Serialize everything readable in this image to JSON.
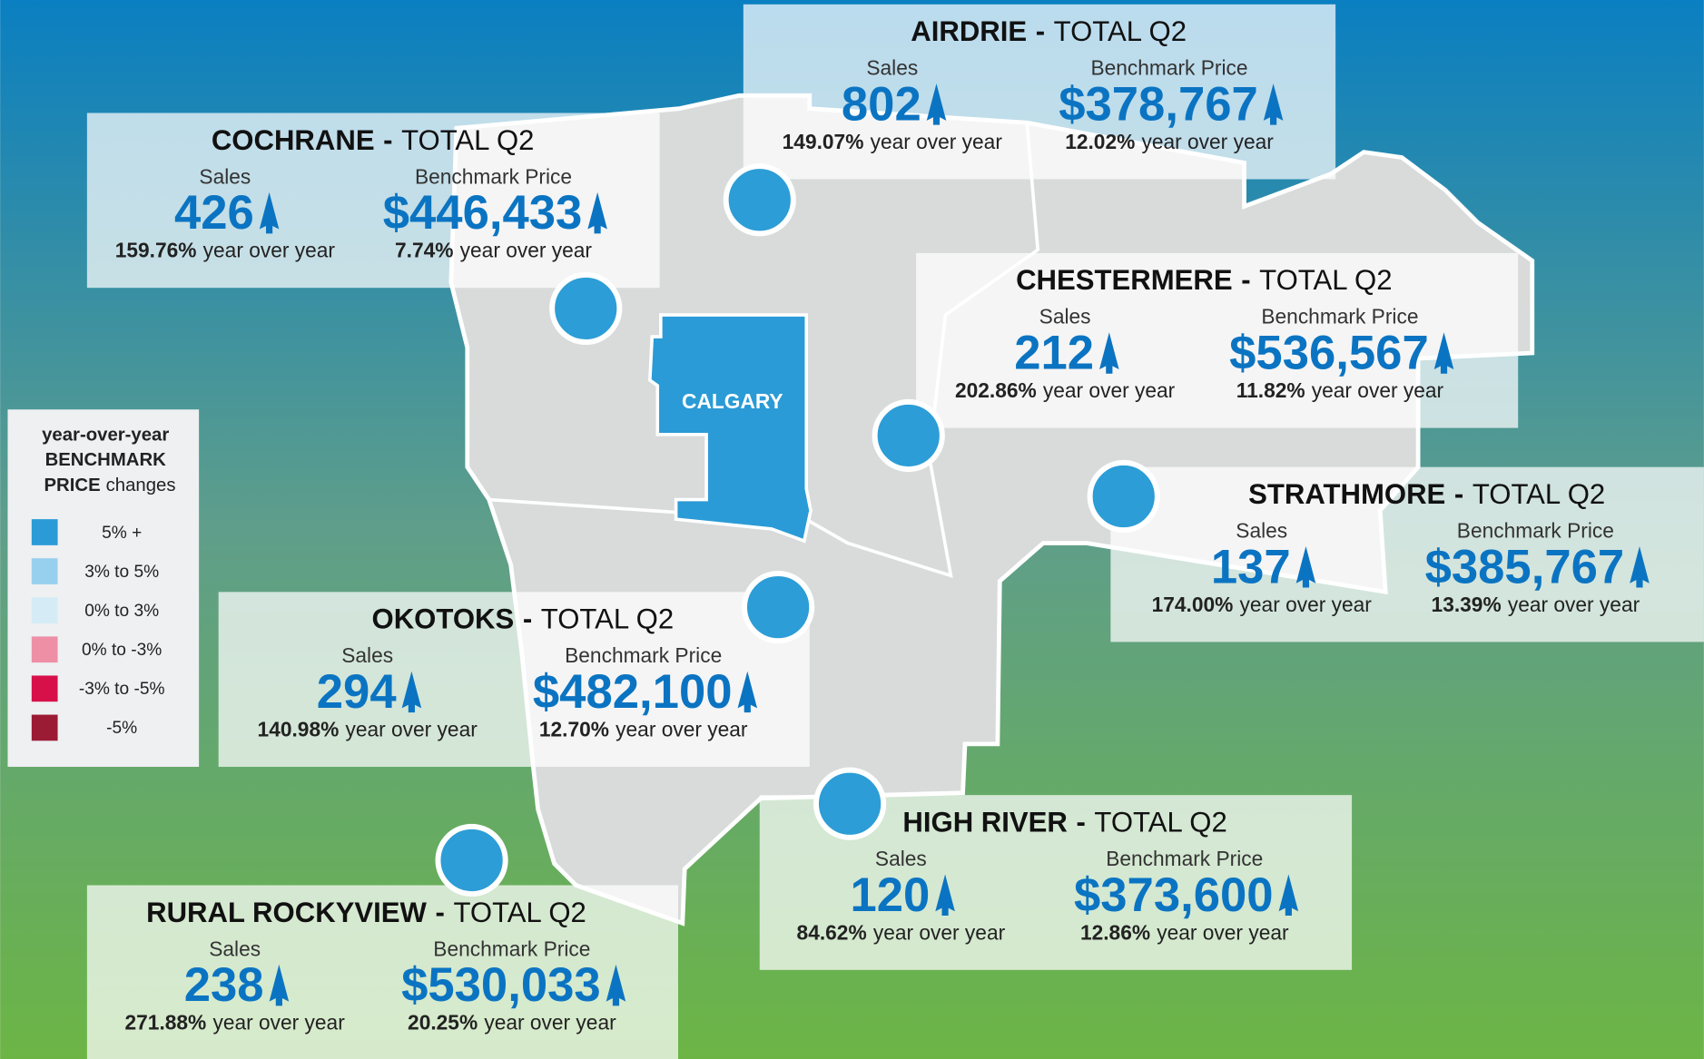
{
  "calgary_label": "CALGARY",
  "shared": {
    "dash": "-",
    "period": "TOTAL Q2",
    "sales_label": "Sales",
    "price_label": "Benchmark Price",
    "yoy": "year over year"
  },
  "legend": {
    "title_lines": [
      "year-over-year",
      "BENCHMARK"
    ],
    "title_bold": "PRICE",
    "title_rest": "changes",
    "items": [
      {
        "label": "5% +",
        "color": "#2a9bd6"
      },
      {
        "label": "3% to 5%",
        "color": "#97d0ee"
      },
      {
        "label": "0% to 3%",
        "color": "#d5ecf6"
      },
      {
        "label": "0% to -3%",
        "color": "#ee8fa6"
      },
      {
        "label": "-3% to -5%",
        "color": "#d7104a"
      },
      {
        "label": "-5%",
        "color": "#9b1b35"
      }
    ]
  },
  "regions": [
    {
      "name": "AIRDRIE",
      "sales": "802",
      "sales_yoy": "149.07%",
      "price": "$378,767",
      "price_yoy": "12.02%",
      "color": "#d5ecf6"
    },
    {
      "name": "COCHRANE",
      "sales": "426",
      "sales_yoy": "159.76%",
      "price": "$446,433",
      "price_yoy": "7.74%",
      "color": "#d5ecf6"
    },
    {
      "name": "CHESTERMERE",
      "sales": "212",
      "sales_yoy": "202.86%",
      "price": "$536,567",
      "price_yoy": "11.82%",
      "color": "#d5ecf6"
    },
    {
      "name": "STRATHMORE",
      "sales": "137",
      "sales_yoy": "174.00%",
      "price": "$385,767",
      "price_yoy": "13.39%",
      "color": "#d5ecf6"
    },
    {
      "name": "OKOTOKS",
      "sales": "294",
      "sales_yoy": "140.98%",
      "price": "$482,100",
      "price_yoy": "12.70%",
      "color": "#d5ecf6"
    },
    {
      "name": "HIGH RIVER",
      "sales": "120",
      "sales_yoy": "84.62%",
      "price": "$373,600",
      "price_yoy": "12.86%",
      "color": "#d5ecf6"
    },
    {
      "name": "RURAL ROCKYVIEW",
      "sales": "238",
      "sales_yoy": "271.88%",
      "price": "$530,033",
      "price_yoy": "20.25%",
      "color": "#d5ecf6"
    }
  ]
}
